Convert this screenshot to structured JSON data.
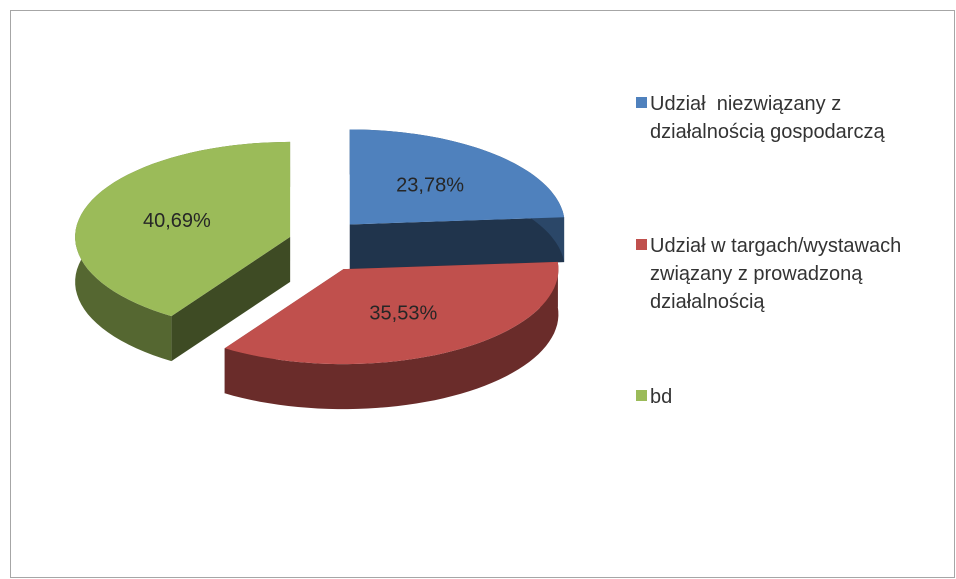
{
  "chart_data": {
    "type": "pie",
    "categories": [
      "Udział  niezwiązany z działalnością gospodarczą",
      "Udział w targach/wystawach związany z prowadzoną działalnością",
      "bd"
    ],
    "values": [
      23.78,
      35.53,
      40.69
    ],
    "value_labels": [
      "23,78%",
      "35,53%",
      "40,69%"
    ],
    "colors": [
      "#4f81bd",
      "#c0504d",
      "#9bbb59"
    ],
    "legend": "right"
  }
}
